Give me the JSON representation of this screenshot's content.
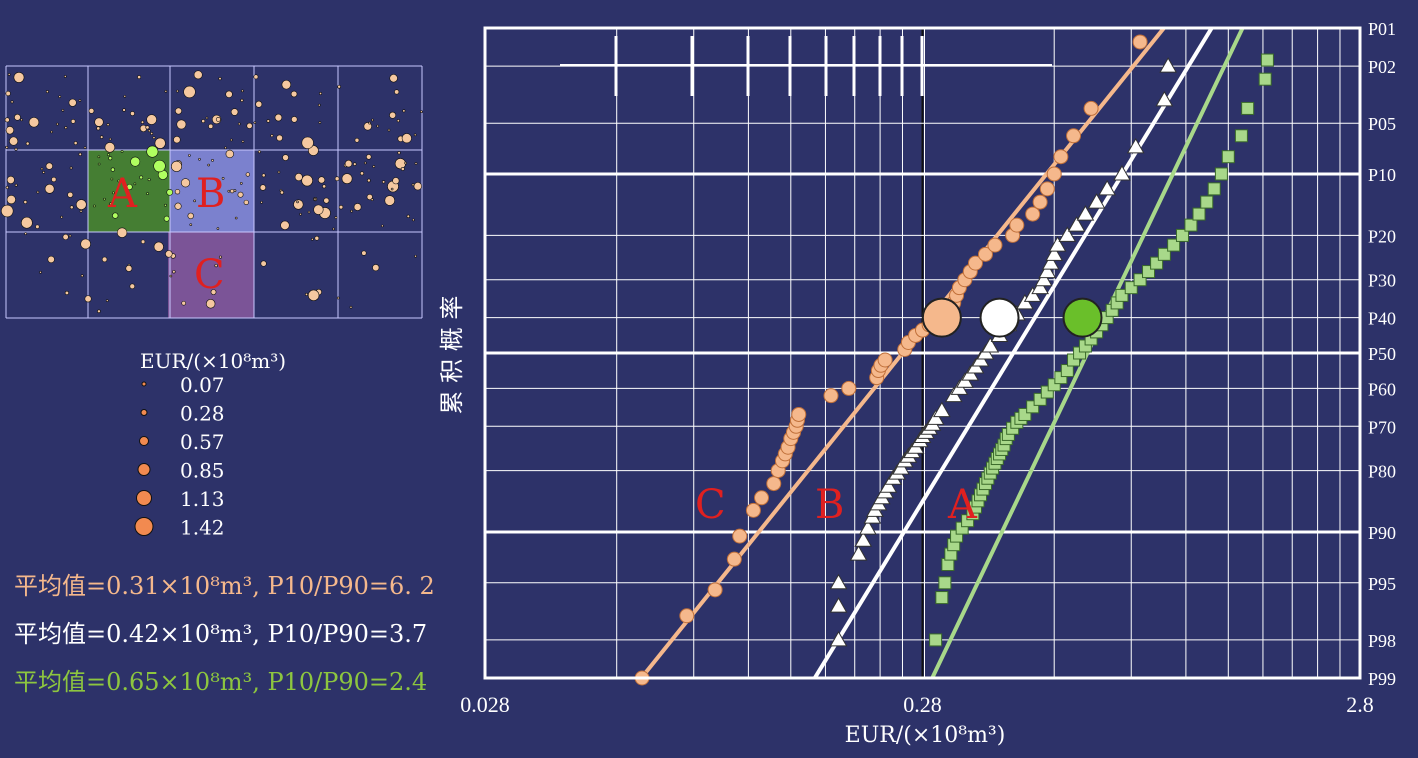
{
  "map": {
    "region_labels": [
      "A",
      "B",
      "C"
    ],
    "colors": {
      "A": "#4a8c2a",
      "B": "#8a8fe0",
      "C": "#8a5aa0",
      "dot": "#f5c8a0",
      "grid": "#c8c8ff"
    }
  },
  "legend": {
    "title": "EUR/(×10⁸m³)",
    "sizes": [
      "0.07",
      "0.28",
      "0.57",
      "0.85",
      "1.13",
      "1.42"
    ],
    "dot_color": "#f28a50"
  },
  "stats": {
    "c": "平均值=0.31×10⁸m³, P10/P90=6. 2",
    "b": "平均值=0.42×10⁸m³, P10/P90=3.7",
    "a": "平均值=0.65×10⁸m³, P10/P90=2.4"
  },
  "chart_data": {
    "type": "scatter",
    "xscale": "log",
    "yscale": "probability",
    "xlim": [
      0.028,
      2.8
    ],
    "x_ticks": [
      "0.028",
      "0.28",
      "2.8"
    ],
    "xlabel": "EUR/(×10⁸m³)",
    "ylabel": "累 积 概 率",
    "y_ticks": [
      "P01",
      "P02",
      "P05",
      "P10",
      "P20",
      "P30",
      "P40",
      "P50",
      "P60",
      "P70",
      "P80",
      "P90",
      "P95",
      "P98",
      "P99"
    ],
    "y_tick_values": [
      1,
      2,
      5,
      10,
      20,
      30,
      40,
      50,
      60,
      70,
      80,
      90,
      95,
      98,
      99
    ],
    "series": [
      {
        "name": "C",
        "marker": "circle",
        "color": "#f5b88c",
        "mean": {
          "x": 0.31,
          "p": 40
        },
        "fit": [
          [
            0.055,
            99.5
          ],
          [
            1.28,
            0.3
          ]
        ],
        "points": [
          [
            0.064,
            99
          ],
          [
            0.081,
            97
          ],
          [
            0.094,
            95.5
          ],
          [
            0.104,
            93
          ],
          [
            0.107,
            90.5
          ],
          [
            0.115,
            87
          ],
          [
            0.12,
            85
          ],
          [
            0.128,
            82.5
          ],
          [
            0.131,
            80
          ],
          [
            0.134,
            78
          ],
          [
            0.136,
            76.5
          ],
          [
            0.138,
            75
          ],
          [
            0.14,
            73
          ],
          [
            0.142,
            71.5
          ],
          [
            0.144,
            70
          ],
          [
            0.145,
            68.5
          ],
          [
            0.146,
            67
          ],
          [
            0.173,
            62
          ],
          [
            0.19,
            60
          ],
          [
            0.22,
            57
          ],
          [
            0.222,
            55
          ],
          [
            0.225,
            53.5
          ],
          [
            0.23,
            52
          ],
          [
            0.255,
            49
          ],
          [
            0.26,
            47
          ],
          [
            0.27,
            45
          ],
          [
            0.28,
            43.5
          ],
          [
            0.29,
            42
          ],
          [
            0.31,
            40
          ],
          [
            0.32,
            38
          ],
          [
            0.33,
            36
          ],
          [
            0.335,
            34
          ],
          [
            0.34,
            32
          ],
          [
            0.35,
            30
          ],
          [
            0.36,
            28
          ],
          [
            0.37,
            26
          ],
          [
            0.39,
            24
          ],
          [
            0.41,
            22
          ],
          [
            0.45,
            20
          ],
          [
            0.46,
            18
          ],
          [
            0.5,
            16
          ],
          [
            0.52,
            14
          ],
          [
            0.54,
            12
          ],
          [
            0.56,
            10
          ],
          [
            0.58,
            8
          ],
          [
            0.62,
            6
          ],
          [
            0.68,
            4
          ],
          [
            0.88,
            1.3
          ]
        ]
      },
      {
        "name": "B",
        "marker": "triangle",
        "color": "#ffffff",
        "mean": {
          "x": 0.42,
          "p": 40
        },
        "fit": [
          [
            0.142,
            99.5
          ],
          [
            1.55,
            0.3
          ]
        ],
        "points": [
          [
            0.18,
            98
          ],
          [
            0.18,
            96.5
          ],
          [
            0.18,
            95
          ],
          [
            0.2,
            92.5
          ],
          [
            0.205,
            91
          ],
          [
            0.21,
            89.5
          ],
          [
            0.215,
            88
          ],
          [
            0.218,
            87
          ],
          [
            0.222,
            86
          ],
          [
            0.226,
            85
          ],
          [
            0.23,
            84
          ],
          [
            0.234,
            83
          ],
          [
            0.24,
            81.5
          ],
          [
            0.245,
            80.5
          ],
          [
            0.25,
            79.5
          ],
          [
            0.255,
            78
          ],
          [
            0.26,
            77
          ],
          [
            0.265,
            76
          ],
          [
            0.27,
            75
          ],
          [
            0.276,
            73.5
          ],
          [
            0.28,
            72.5
          ],
          [
            0.285,
            71.5
          ],
          [
            0.29,
            70.5
          ],
          [
            0.295,
            69.5
          ],
          [
            0.3,
            68
          ],
          [
            0.31,
            66
          ],
          [
            0.33,
            62
          ],
          [
            0.34,
            60
          ],
          [
            0.35,
            58
          ],
          [
            0.36,
            56
          ],
          [
            0.37,
            54
          ],
          [
            0.38,
            52
          ],
          [
            0.39,
            50
          ],
          [
            0.4,
            48
          ],
          [
            0.42,
            45
          ],
          [
            0.44,
            42
          ],
          [
            0.46,
            39
          ],
          [
            0.48,
            36
          ],
          [
            0.5,
            34
          ],
          [
            0.52,
            32
          ],
          [
            0.53,
            30
          ],
          [
            0.54,
            28
          ],
          [
            0.55,
            26
          ],
          [
            0.56,
            24
          ],
          [
            0.57,
            22
          ],
          [
            0.6,
            20
          ],
          [
            0.63,
            18
          ],
          [
            0.66,
            16
          ],
          [
            0.7,
            14
          ],
          [
            0.74,
            12
          ],
          [
            0.8,
            10
          ],
          [
            0.86,
            7
          ],
          [
            1.0,
            3.5
          ],
          [
            1.02,
            2
          ]
        ]
      },
      {
        "name": "A",
        "marker": "square",
        "color": "#a8d88a",
        "mean": {
          "x": 0.65,
          "p": 40
        },
        "fit": [
          [
            0.27,
            99.5
          ],
          [
            1.75,
            0.3
          ]
        ],
        "points": [
          [
            0.3,
            98
          ],
          [
            0.31,
            96
          ],
          [
            0.315,
            95
          ],
          [
            0.32,
            93.5
          ],
          [
            0.325,
            92.5
          ],
          [
            0.33,
            91.5
          ],
          [
            0.335,
            90.5
          ],
          [
            0.345,
            89.5
          ],
          [
            0.355,
            88.5
          ],
          [
            0.365,
            87.5
          ],
          [
            0.37,
            86.5
          ],
          [
            0.375,
            85.5
          ],
          [
            0.38,
            84.5
          ],
          [
            0.385,
            83.5
          ],
          [
            0.39,
            82.5
          ],
          [
            0.395,
            81.5
          ],
          [
            0.4,
            80.5
          ],
          [
            0.405,
            79.5
          ],
          [
            0.41,
            78.5
          ],
          [
            0.415,
            77.5
          ],
          [
            0.42,
            76.5
          ],
          [
            0.425,
            75.5
          ],
          [
            0.43,
            74.5
          ],
          [
            0.435,
            73
          ],
          [
            0.44,
            72
          ],
          [
            0.45,
            70.5
          ],
          [
            0.46,
            69
          ],
          [
            0.47,
            68
          ],
          [
            0.48,
            67
          ],
          [
            0.5,
            65
          ],
          [
            0.52,
            63
          ],
          [
            0.54,
            61
          ],
          [
            0.56,
            59
          ],
          [
            0.58,
            57
          ],
          [
            0.6,
            55
          ],
          [
            0.62,
            52
          ],
          [
            0.64,
            50
          ],
          [
            0.66,
            48
          ],
          [
            0.68,
            46
          ],
          [
            0.7,
            44
          ],
          [
            0.72,
            42
          ],
          [
            0.74,
            40
          ],
          [
            0.76,
            38
          ],
          [
            0.78,
            36
          ],
          [
            0.8,
            34
          ],
          [
            0.84,
            32
          ],
          [
            0.88,
            30
          ],
          [
            0.92,
            28
          ],
          [
            0.96,
            26
          ],
          [
            1.0,
            24
          ],
          [
            1.05,
            22
          ],
          [
            1.1,
            20
          ],
          [
            1.15,
            18
          ],
          [
            1.2,
            16
          ],
          [
            1.25,
            14
          ],
          [
            1.3,
            12
          ],
          [
            1.35,
            10
          ],
          [
            1.4,
            8
          ],
          [
            1.5,
            6
          ],
          [
            1.55,
            4
          ],
          [
            1.7,
            2.5
          ],
          [
            1.72,
            1.8
          ]
        ]
      }
    ]
  }
}
